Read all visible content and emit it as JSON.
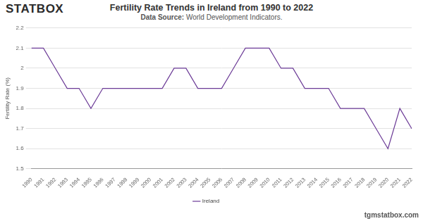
{
  "header": {
    "logo": "STATBOX"
  },
  "footer": {
    "url": "tgmstatbox.com"
  },
  "chart_data": {
    "type": "line",
    "title": "Fertility Rate Trends in Ireland from 1990 to 2022",
    "subtitle": "Data Source: World Development Indicators.",
    "y_label": "Fertility Rate (%)",
    "categories": [
      "1990",
      "1991",
      "1992",
      "1993",
      "1994",
      "1995",
      "1996",
      "1997",
      "1998",
      "1999",
      "2000",
      "2001",
      "2002",
      "2003",
      "2004",
      "2005",
      "2006",
      "2007",
      "2008",
      "2009",
      "2010",
      "2011",
      "2012",
      "2013",
      "2014",
      "2015",
      "2016",
      "2017",
      "2018",
      "2019",
      "2020",
      "2021",
      "2022"
    ],
    "series": [
      {
        "name": "Ireland",
        "color": "#6b3a96",
        "values": [
          2.1,
          2.1,
          2.0,
          1.9,
          1.9,
          1.8,
          1.9,
          1.9,
          1.9,
          1.9,
          1.9,
          1.9,
          2.0,
          2.0,
          1.9,
          1.9,
          1.9,
          2.0,
          2.1,
          2.1,
          2.1,
          2.0,
          2.0,
          1.9,
          1.9,
          1.9,
          1.8,
          1.8,
          1.8,
          1.7,
          1.6,
          1.8,
          1.7
        ]
      }
    ],
    "ylim": [
      1.5,
      2.2
    ],
    "yticks": [
      1.5,
      1.6,
      1.7,
      1.8,
      1.9,
      2,
      2.1,
      2.2
    ],
    "grid": true,
    "legend": "bottom"
  }
}
